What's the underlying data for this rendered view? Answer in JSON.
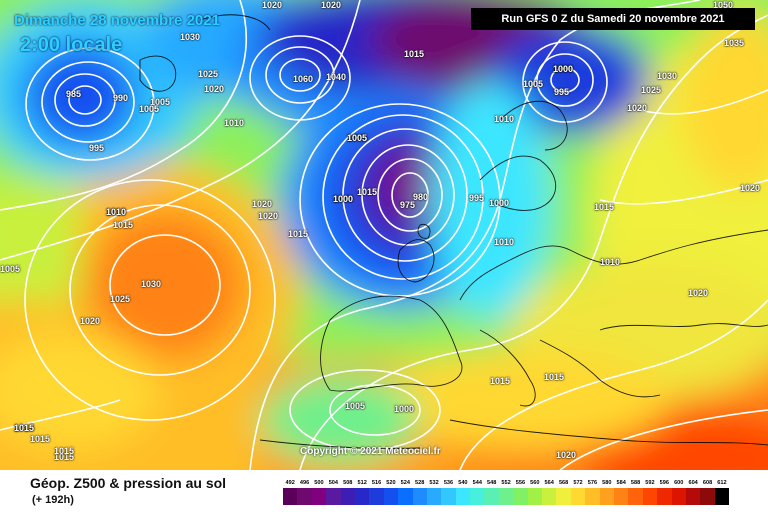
{
  "header": {
    "date_line": "Dimanche 28 novembre 2021",
    "time_line": "2:00 locale",
    "run_info": "Run GFS 0 Z du Samedi 20 novembre 2021"
  },
  "footer": {
    "product_title": "Géop. Z500 & pression au sol",
    "lead_time": "(+ 192h)",
    "copyright": "Copyright © 2021 Meteociel.fr"
  },
  "isobar_labels": [
    {
      "id": "l1",
      "text": "1020"
    },
    {
      "id": "l2",
      "text": "1020"
    },
    {
      "id": "l3",
      "text": "1030"
    },
    {
      "id": "l4",
      "text": "985"
    },
    {
      "id": "l5",
      "text": "990"
    },
    {
      "id": "l6",
      "text": "1005"
    },
    {
      "id": "l7",
      "text": "1005"
    },
    {
      "id": "l8",
      "text": "995"
    },
    {
      "id": "l9",
      "text": "1025"
    },
    {
      "id": "l10",
      "text": "1020"
    },
    {
      "id": "l11",
      "text": "1010"
    },
    {
      "id": "l12",
      "text": "1060"
    },
    {
      "id": "l13",
      "text": "1040"
    },
    {
      "id": "l14",
      "text": "1015"
    },
    {
      "id": "l15",
      "text": "1005"
    },
    {
      "id": "l16",
      "text": "1000"
    },
    {
      "id": "l17",
      "text": "995"
    },
    {
      "id": "l18",
      "text": "1010"
    },
    {
      "id": "l19",
      "text": "1035"
    },
    {
      "id": "l20",
      "text": "1030"
    },
    {
      "id": "l21",
      "text": "1025"
    },
    {
      "id": "l22",
      "text": "1020"
    },
    {
      "id": "l23",
      "text": "1005"
    },
    {
      "id": "l24",
      "text": "1000"
    },
    {
      "id": "l25",
      "text": "1015"
    },
    {
      "id": "l26",
      "text": "980"
    },
    {
      "id": "l27",
      "text": "975"
    },
    {
      "id": "l28",
      "text": "995"
    },
    {
      "id": "l29",
      "text": "1000"
    },
    {
      "id": "l30",
      "text": "1010"
    },
    {
      "id": "l31",
      "text": "1010"
    },
    {
      "id": "l32",
      "text": "1015"
    },
    {
      "id": "l33",
      "text": "1010"
    },
    {
      "id": "l34",
      "text": "1020"
    },
    {
      "id": "l35",
      "text": "1020"
    },
    {
      "id": "l36",
      "text": "1020"
    },
    {
      "id": "l37",
      "text": "1015"
    },
    {
      "id": "l38",
      "text": "1010"
    },
    {
      "id": "l39",
      "text": "1015"
    },
    {
      "id": "l40",
      "text": "1005"
    },
    {
      "id": "l41",
      "text": "1030"
    },
    {
      "id": "l42",
      "text": "1025"
    },
    {
      "id": "l43",
      "text": "1020"
    },
    {
      "id": "l44",
      "text": "1015"
    },
    {
      "id": "l45",
      "text": "1015"
    },
    {
      "id": "l46",
      "text": "1015"
    },
    {
      "id": "l47",
      "text": "1015"
    },
    {
      "id": "l48",
      "text": "1015"
    },
    {
      "id": "l49",
      "text": "1005"
    },
    {
      "id": "l50",
      "text": "1000"
    },
    {
      "id": "l51",
      "text": "1020"
    },
    {
      "id": "l52",
      "text": "1050"
    },
    {
      "id": "l53",
      "text": "1000"
    },
    {
      "id": "l54",
      "text": "1005"
    },
    {
      "id": "l55",
      "text": "1000"
    },
    {
      "id": "l56",
      "text": "1015"
    },
    {
      "id": "l57",
      "text": "1015"
    },
    {
      "id": "l58",
      "text": "1020"
    }
  ],
  "legend_scale": {
    "values": [
      "492",
      "496",
      "500",
      "504",
      "508",
      "512",
      "516",
      "520",
      "524",
      "528",
      "532",
      "536",
      "540",
      "544",
      "548",
      "552",
      "556",
      "560",
      "564",
      "568",
      "572",
      "576",
      "580",
      "584",
      "588",
      "592",
      "596",
      "600",
      "604",
      "608",
      "612"
    ],
    "colors": [
      "#5a005a",
      "#6e0a6e",
      "#800080",
      "#5a1aa0",
      "#3c1eb4",
      "#2828c8",
      "#1e3cdc",
      "#1450f0",
      "#0a6eff",
      "#1e8cff",
      "#28aaff",
      "#32c8ff",
      "#3ce6ff",
      "#46f0dc",
      "#5af0b4",
      "#6ef08c",
      "#82f064",
      "#a0f046",
      "#c8f03c",
      "#f0f03c",
      "#ffd832",
      "#ffbe28",
      "#ffa01e",
      "#ff8214",
      "#ff640a",
      "#ff4600",
      "#f02800",
      "#dc1400",
      "#b40a0a",
      "#8c0a0a",
      "#000000"
    ]
  }
}
